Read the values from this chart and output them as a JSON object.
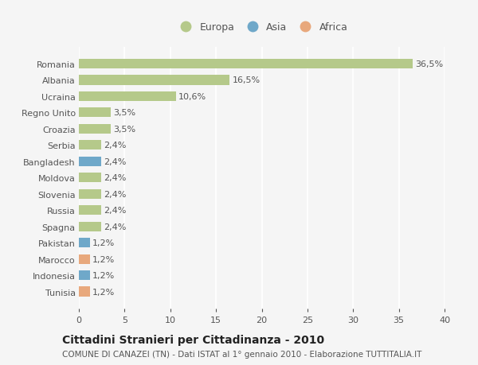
{
  "categories": [
    "Tunisia",
    "Indonesia",
    "Marocco",
    "Pakistan",
    "Spagna",
    "Russia",
    "Slovenia",
    "Moldova",
    "Bangladesh",
    "Serbia",
    "Croazia",
    "Regno Unito",
    "Ucraina",
    "Albania",
    "Romania"
  ],
  "values": [
    1.2,
    1.2,
    1.2,
    1.2,
    2.4,
    2.4,
    2.4,
    2.4,
    2.4,
    2.4,
    3.5,
    3.5,
    10.6,
    16.5,
    36.5
  ],
  "bar_colors": [
    "#e8a87c",
    "#6fa8c9",
    "#e8a87c",
    "#6fa8c9",
    "#b5c98a",
    "#b5c98a",
    "#b5c98a",
    "#b5c98a",
    "#6fa8c9",
    "#b5c98a",
    "#b5c98a",
    "#b5c98a",
    "#b5c98a",
    "#b5c98a",
    "#b5c98a"
  ],
  "labels": [
    "1,2%",
    "1,2%",
    "1,2%",
    "1,2%",
    "2,4%",
    "2,4%",
    "2,4%",
    "2,4%",
    "2,4%",
    "2,4%",
    "3,5%",
    "3,5%",
    "10,6%",
    "16,5%",
    "36,5%"
  ],
  "legend_labels": [
    "Europa",
    "Asia",
    "Africa"
  ],
  "legend_colors": [
    "#b5c98a",
    "#6fa8c9",
    "#e8a87c"
  ],
  "title": "Cittadini Stranieri per Cittadinanza - 2010",
  "subtitle": "COMUNE DI CANAZEI (TN) - Dati ISTAT al 1° gennaio 2010 - Elaborazione TUTTITALIA.IT",
  "xlim": [
    0,
    40
  ],
  "xticks": [
    0,
    5,
    10,
    15,
    20,
    25,
    30,
    35,
    40
  ],
  "background_color": "#f5f5f5",
  "bar_height": 0.6,
  "label_fontsize": 8,
  "title_fontsize": 10,
  "subtitle_fontsize": 7.5,
  "ytick_fontsize": 8,
  "xtick_fontsize": 8,
  "grid_color": "#ffffff",
  "text_color": "#555555",
  "title_color": "#222222"
}
